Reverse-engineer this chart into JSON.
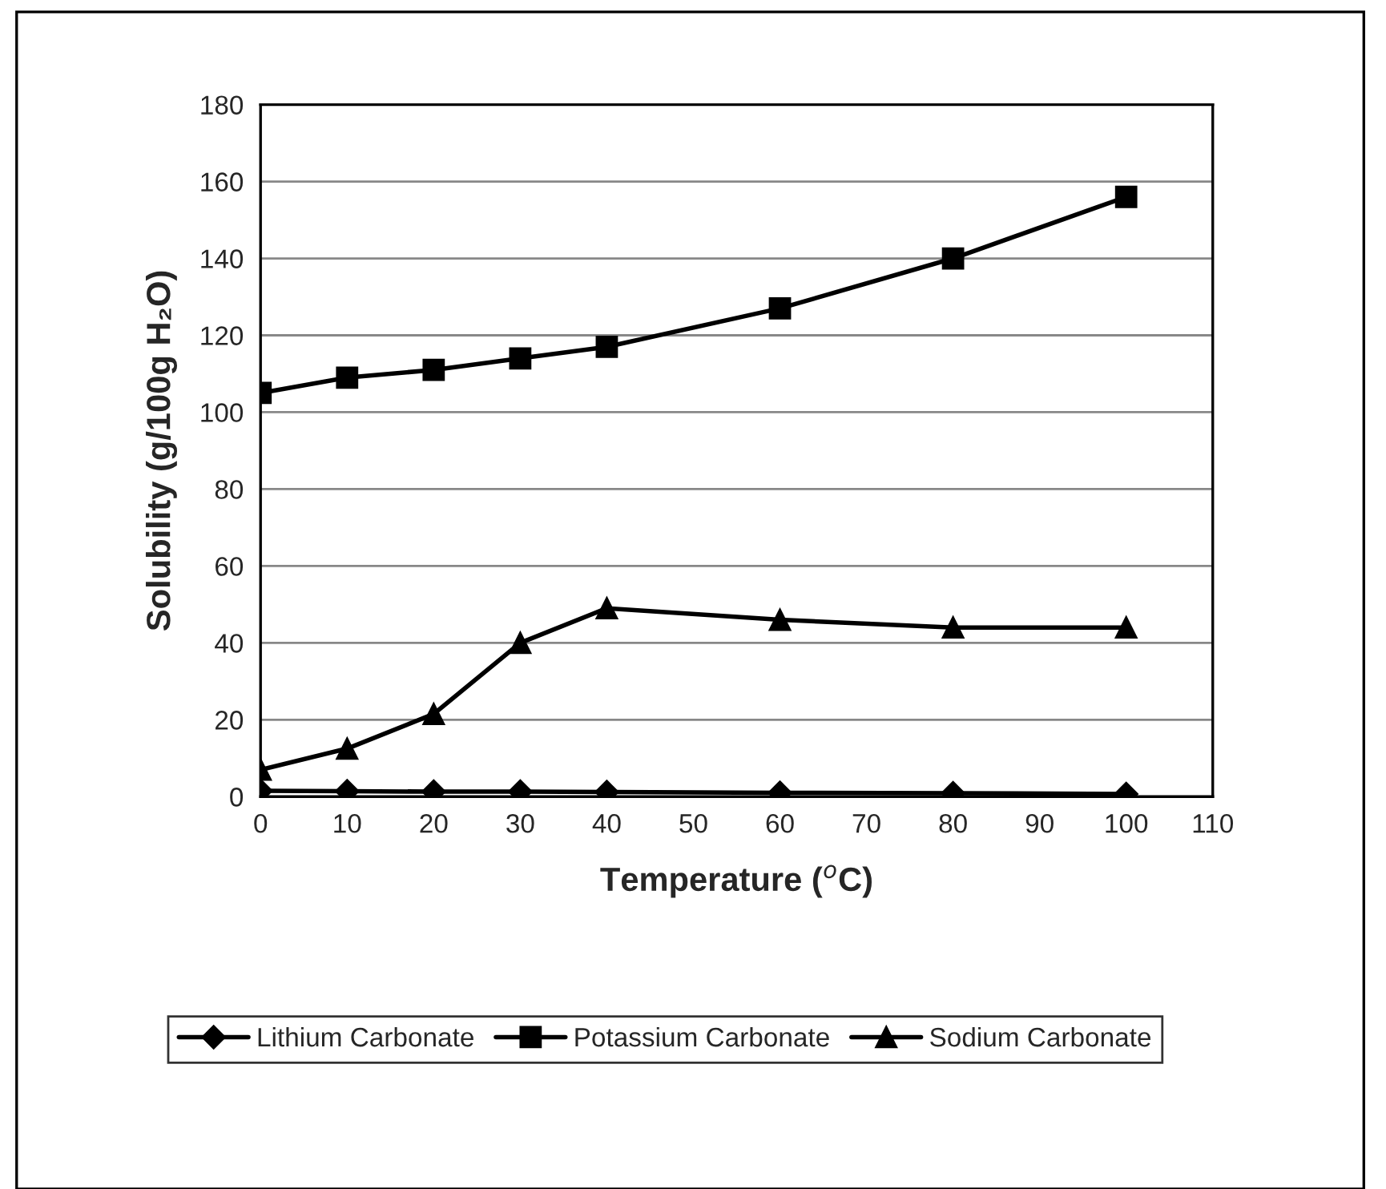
{
  "chart_data": {
    "type": "line",
    "xlabel": "Temperature ($^{o}$C)",
    "ylabel": "Solubility (g/100g H₂O)",
    "x": [
      0,
      10,
      20,
      30,
      40,
      60,
      80,
      100
    ],
    "series": [
      {
        "name": "Lithium Carbonate",
        "color": "#000000",
        "marker": "diamond",
        "values": [
          1.5,
          1.4,
          1.3,
          1.3,
          1.2,
          1.0,
          0.9,
          0.7
        ]
      },
      {
        "name": "Potassium Carbonate",
        "color": "#000000",
        "marker": "square",
        "values": [
          105,
          109,
          111,
          114,
          117,
          127,
          140,
          156
        ]
      },
      {
        "name": "Sodium Carbonate",
        "color": "#000000",
        "marker": "triangle",
        "values": [
          7,
          12.5,
          21.5,
          40,
          49,
          46,
          44,
          44
        ]
      }
    ],
    "xlim": [
      0,
      110
    ],
    "xticks": [
      0,
      10,
      20,
      30,
      40,
      50,
      60,
      70,
      80,
      90,
      100,
      110
    ],
    "ylim": [
      0,
      180
    ],
    "yticks": [
      0,
      20,
      40,
      60,
      80,
      100,
      120,
      140,
      160,
      180
    ],
    "grid": "y",
    "legend": "bottom",
    "line_style": "solid"
  }
}
